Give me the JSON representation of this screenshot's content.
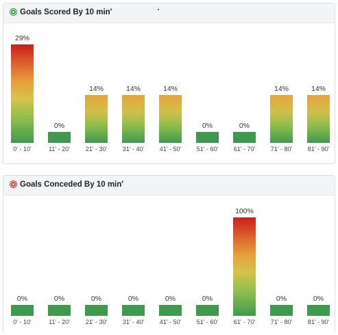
{
  "chart_data": [
    {
      "type": "bar",
      "title": "Goals Scored By 10 min'",
      "categories": [
        "0' - 10'",
        "11' - 20'",
        "21' - 30'",
        "31' - 40'",
        "41' - 50'",
        "51' - 60'",
        "61' - 70'",
        "71' - 80'",
        "81' - 90'"
      ],
      "values": [
        29,
        0,
        14,
        14,
        14,
        0,
        0,
        14,
        14
      ],
      "value_labels": [
        "29%",
        "0%",
        "14%",
        "14%",
        "14%",
        "0%",
        "0%",
        "14%",
        "14%"
      ],
      "ylim": [
        0,
        29
      ],
      "colors": {
        "high": "#cc1f1a",
        "mid": "#e8a33a",
        "low": "#3f9a4e"
      }
    },
    {
      "type": "bar",
      "title": "Goals Conceded By 10 min'",
      "categories": [
        "0' - 10'",
        "11' - 20'",
        "21' - 30'",
        "31' - 40'",
        "41' - 50'",
        "51' - 60'",
        "61' - 70'",
        "71' - 80'",
        "81' - 90'"
      ],
      "values": [
        0,
        0,
        0,
        0,
        0,
        0,
        100,
        0,
        0
      ],
      "value_labels": [
        "0%",
        "0%",
        "0%",
        "0%",
        "0%",
        "0%",
        "100%",
        "0%",
        "0%"
      ],
      "ylim": [
        0,
        100
      ],
      "colors": {
        "high": "#cc1f1a",
        "mid": "#e8a33a",
        "low": "#3f9a4e"
      }
    }
  ],
  "panels": {
    "scored": {
      "title": "Goals Scored By 10 min'",
      "icon": "soccer-ball-green-icon"
    },
    "conceded": {
      "title": "Goals Conceded By 10 min'",
      "icon": "soccer-ball-red-icon"
    }
  }
}
